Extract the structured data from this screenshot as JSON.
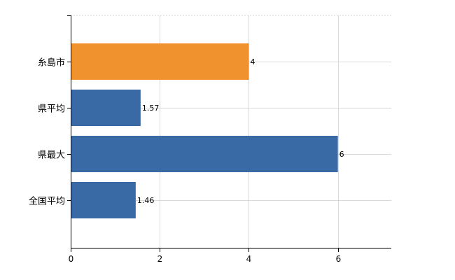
{
  "chart_data": {
    "type": "bar",
    "orientation": "horizontal",
    "categories": [
      "糸島市",
      "県平均",
      "県最大",
      "全国平均"
    ],
    "values": [
      4,
      1.57,
      6,
      1.46
    ],
    "value_labels": [
      "4",
      "1.57",
      "6",
      "1.46"
    ],
    "bar_colors": [
      "#f0922e",
      "#3a6aa6",
      "#3a6aa6",
      "#3a6aa6"
    ],
    "xlim": [
      0,
      7.2
    ],
    "xticks": [
      0,
      2,
      4,
      6
    ],
    "xtick_labels": [
      "0",
      "2",
      "4",
      "6"
    ],
    "grid": true
  }
}
